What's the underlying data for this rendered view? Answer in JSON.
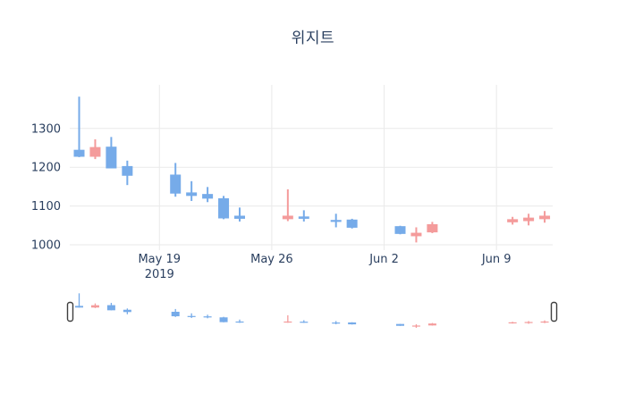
{
  "title": "위지트",
  "chart_data": {
    "type": "candlestick",
    "title": "위지트",
    "xlabel": "",
    "ylabel": "",
    "grid": true,
    "legend": false,
    "rangeslider": true,
    "y_ticks": [
      1000,
      1100,
      1200,
      1300
    ],
    "y_range": [
      986,
      1403
    ],
    "x_tick_labels": [
      {
        "label": "May 19",
        "sub": "2019",
        "date": "2019-05-19"
      },
      {
        "label": "May 26",
        "sub": "",
        "date": "2019-05-26"
      },
      {
        "label": "Jun 2",
        "sub": "",
        "date": "2019-06-02"
      },
      {
        "label": "Jun 9",
        "sub": "",
        "date": "2019-06-09"
      }
    ],
    "colors": {
      "increasing": "#F49B9B",
      "decreasing": "#76ABE9",
      "grid": "#EAEAEA",
      "text": "#2A3F5F",
      "slider_handle_border": "#3F3F3F",
      "slider_handle_fill": "#FFFFFF"
    },
    "ohlc": [
      {
        "date": "2019-05-14",
        "open": 1245,
        "high": 1382,
        "low": 1226,
        "close": 1227
      },
      {
        "date": "2019-05-15",
        "open": 1227,
        "high": 1272,
        "low": 1221,
        "close": 1252
      },
      {
        "date": "2019-05-16",
        "open": 1253,
        "high": 1278,
        "low": 1197,
        "close": 1197
      },
      {
        "date": "2019-05-17",
        "open": 1203,
        "high": 1217,
        "low": 1154,
        "close": 1178
      },
      {
        "date": "2019-05-20",
        "open": 1181,
        "high": 1211,
        "low": 1124,
        "close": 1132
      },
      {
        "date": "2019-05-21",
        "open": 1135,
        "high": 1164,
        "low": 1113,
        "close": 1126
      },
      {
        "date": "2019-05-22",
        "open": 1131,
        "high": 1149,
        "low": 1110,
        "close": 1119
      },
      {
        "date": "2019-05-23",
        "open": 1120,
        "high": 1126,
        "low": 1066,
        "close": 1068
      },
      {
        "date": "2019-05-24",
        "open": 1075,
        "high": 1096,
        "low": 1060,
        "close": 1067
      },
      {
        "date": "2019-05-27",
        "open": 1066,
        "high": 1143,
        "low": 1061,
        "close": 1075
      },
      {
        "date": "2019-05-28",
        "open": 1073,
        "high": 1089,
        "low": 1060,
        "close": 1067
      },
      {
        "date": "2019-05-30",
        "open": 1064,
        "high": 1080,
        "low": 1045,
        "close": 1059
      },
      {
        "date": "2019-05-31",
        "open": 1065,
        "high": 1067,
        "low": 1042,
        "close": 1044
      },
      {
        "date": "2019-06-03",
        "open": 1048,
        "high": 1049,
        "low": 1027,
        "close": 1028
      },
      {
        "date": "2019-06-04",
        "open": 1022,
        "high": 1045,
        "low": 1006,
        "close": 1031
      },
      {
        "date": "2019-06-05",
        "open": 1032,
        "high": 1059,
        "low": 1030,
        "close": 1053
      },
      {
        "date": "2019-06-10",
        "open": 1058,
        "high": 1072,
        "low": 1052,
        "close": 1066
      },
      {
        "date": "2019-06-11",
        "open": 1061,
        "high": 1080,
        "low": 1050,
        "close": 1070
      },
      {
        "date": "2019-06-12",
        "open": 1066,
        "high": 1087,
        "low": 1057,
        "close": 1075
      }
    ]
  }
}
